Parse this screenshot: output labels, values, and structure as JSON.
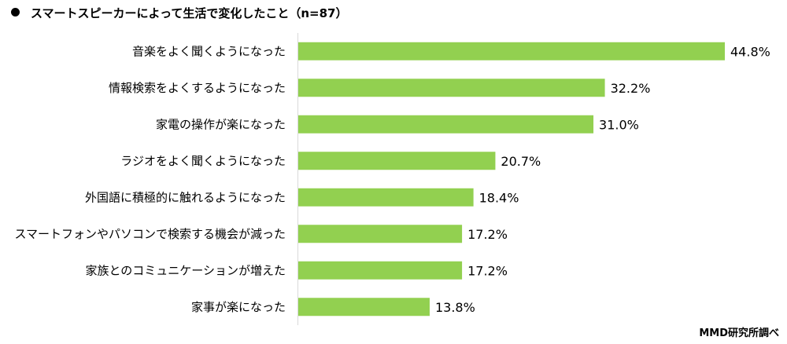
{
  "chart_data": {
    "type": "bar",
    "orientation": "horizontal",
    "title": "スマートスピーカーによって生活で変化したこと（n=87）",
    "categories": [
      "音楽をよく聞くようになった",
      "情報検索をよくするようになった",
      "家電の操作が楽になった",
      "ラジオをよく聞くようになった",
      "外国語に積極的に触れるようになった",
      "スマートフォンやパソコンで検索する機会が減った",
      "家族とのコミュニケーションが増えた",
      "家事が楽になった"
    ],
    "values": [
      44.8,
      32.2,
      31.0,
      20.7,
      18.4,
      17.2,
      17.2,
      13.8
    ],
    "value_labels": [
      "44.8%",
      "32.2%",
      "31.0%",
      "20.7%",
      "18.4%",
      "17.2%",
      "17.2%",
      "13.8%"
    ],
    "xlim": [
      0,
      45
    ],
    "grid": false,
    "bar_color": "#92d050"
  },
  "credit": "MMD研究所調べ"
}
